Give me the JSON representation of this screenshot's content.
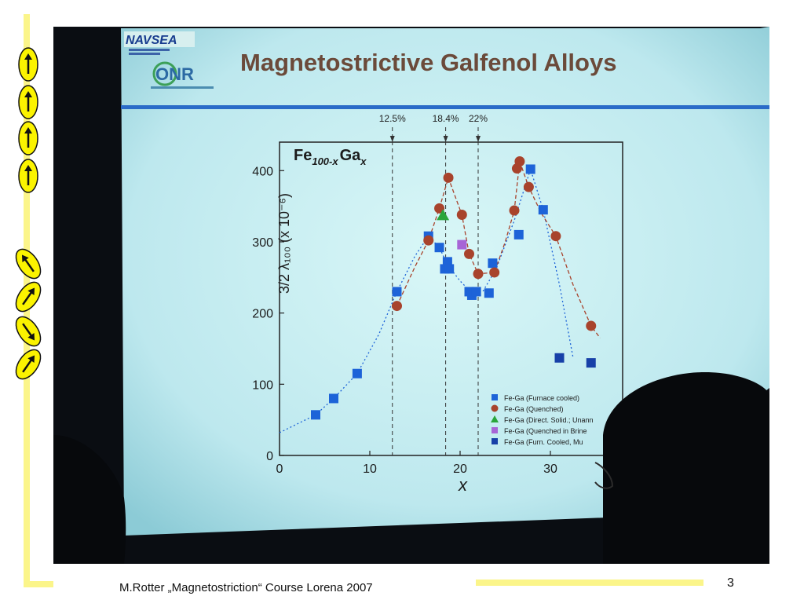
{
  "slide": {
    "title": "Magnetostrictive Galfenol Alloys",
    "logo_navsea": "NAVSEA",
    "logo_onr": "ONR",
    "footer": "M.Rotter „Magnetostriction“ Course Lorena 2007",
    "page_number": "3"
  },
  "colors": {
    "frame_yellow": "#fbf58a",
    "screen": "#c8eef2",
    "title_color": "#6b4a3a",
    "blue_series": "#1d63d8",
    "red_series": "#a8432c",
    "green_series": "#2aa53b",
    "purple_series": "#a765d6"
  },
  "spin_arrows": [
    {
      "icon": "arrow-up-icon",
      "direction": "up"
    },
    {
      "icon": "arrow-up-icon",
      "direction": "up"
    },
    {
      "icon": "arrow-up-icon",
      "direction": "up"
    },
    {
      "icon": "arrow-up-icon",
      "direction": "up"
    },
    {
      "icon": "arrow-up-left-icon",
      "direction": "up-left"
    },
    {
      "icon": "arrow-up-right-icon",
      "direction": "up-right"
    },
    {
      "icon": "arrow-down-right-icon",
      "direction": "down-right"
    },
    {
      "icon": "arrow-up-right-icon",
      "direction": "up-right"
    }
  ],
  "chart_data": {
    "type": "scatter",
    "formula": {
      "base1": "Fe",
      "sub1": "100-x",
      "base2": "Ga",
      "sub2": "x"
    },
    "ylabel": "3/2 λ₁₀₀ (x 10⁻⁶)",
    "xlabel": "x",
    "xlim": [
      0,
      38
    ],
    "ylim": [
      0,
      440
    ],
    "xticks": [
      "0",
      "10",
      "20",
      "30"
    ],
    "xtick_values": [
      0,
      10,
      20,
      30
    ],
    "yticks": [
      "0",
      "100",
      "200",
      "300",
      "400"
    ],
    "ytick_values": [
      0,
      100,
      200,
      300,
      400
    ],
    "annotations": [
      {
        "label": "12.5%",
        "x": 12.5
      },
      {
        "label": "18.4%",
        "x": 18.4
      },
      {
        "label": "22%",
        "x": 22
      }
    ],
    "series": [
      {
        "name": "Fe-Ga (Furnace cooled)",
        "marker": "square",
        "color": "#1d63d8",
        "x": [
          4,
          6,
          8.6,
          13,
          16.5,
          17.7,
          18.3,
          18.6,
          18.8,
          21,
          21.3,
          21.8,
          23.2,
          23.6,
          26.5,
          27.8,
          29.2
        ],
        "y": [
          57,
          80,
          115,
          230,
          308,
          292,
          262,
          272,
          262,
          230,
          225,
          230,
          228,
          270,
          310,
          402,
          345
        ]
      },
      {
        "name": "Fe-Ga (Quenched)",
        "marker": "circle",
        "color": "#a8432c",
        "x": [
          13,
          16.5,
          17.7,
          18.7,
          20.2,
          21,
          22,
          23.8,
          26,
          26.3,
          26.6,
          27.6,
          30.6,
          34.5
        ],
        "y": [
          210,
          302,
          347,
          390,
          338,
          283,
          255,
          257,
          344,
          403,
          413,
          377,
          308,
          182
        ]
      },
      {
        "name": "Fe-Ga (Direct. Solid.; Unann",
        "marker": "triangle",
        "color": "#2aa53b",
        "x": [
          18.1
        ],
        "y": [
          337
        ]
      },
      {
        "name": "Fe-Ga (Quenched in Brine",
        "marker": "square",
        "color": "#a765d6",
        "x": [
          20.2
        ],
        "y": [
          296
        ]
      },
      {
        "name": "Fe-Ga (Furn. Cooled, Mu",
        "marker": "square",
        "color": "#1740a8",
        "x": [
          31,
          34.5
        ],
        "y": [
          137,
          130
        ]
      }
    ],
    "fit_curves": [
      {
        "color": "#1d63d8",
        "style": "dotted",
        "x": [
          0,
          4,
          6,
          8.6,
          11,
          13,
          15,
          16.5,
          17.7,
          18.6,
          20,
          21.3,
          22.5,
          24,
          26,
          27.8,
          29.2,
          31,
          32.5
        ],
        "y": [
          32,
          57,
          80,
          115,
          170,
          230,
          280,
          308,
          292,
          268,
          245,
          228,
          230,
          262,
          330,
          402,
          345,
          240,
          138
        ]
      },
      {
        "color": "#a8432c",
        "style": "dashed",
        "x": [
          13,
          15,
          16.5,
          17.7,
          18.7,
          20.2,
          21,
          22,
          23.8,
          25,
          26,
          26.6,
          27.6,
          29,
          30.6,
          32.5,
          34.5,
          35.5
        ],
        "y": [
          210,
          265,
          302,
          347,
          390,
          338,
          283,
          255,
          257,
          300,
          344,
          413,
          377,
          340,
          308,
          240,
          182,
          165
        ]
      }
    ],
    "legend_position": "bottom-right",
    "grid": false
  }
}
